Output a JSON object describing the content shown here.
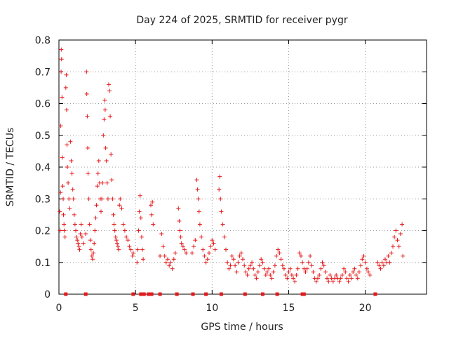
{
  "chart_data": {
    "type": "scatter",
    "title": "Day 224 of 2025, SRMTID for receiver pygr",
    "xlabel": "GPS time / hours",
    "ylabel": "SRMTID / TECUs",
    "xlim": [
      0,
      24
    ],
    "ylim": [
      0,
      0.8
    ],
    "xticks": [
      0,
      5,
      10,
      15,
      20
    ],
    "yticks": [
      0,
      0.1,
      0.2,
      0.3,
      0.4,
      0.5,
      0.6,
      0.7,
      0.8
    ],
    "grid": true,
    "marker": "+",
    "color": "#e41a1c",
    "series": [
      {
        "name": "SRMTID",
        "points": [
          [
            0.05,
            0.26
          ],
          [
            0.08,
            0.2
          ],
          [
            0.1,
            0.32
          ],
          [
            0.12,
            0.53
          ],
          [
            0.14,
            0.7
          ],
          [
            0.15,
            0.77
          ],
          [
            0.17,
            0.74
          ],
          [
            0.2,
            0.62
          ],
          [
            0.22,
            0.43
          ],
          [
            0.25,
            0.34
          ],
          [
            0.28,
            0.3
          ],
          [
            0.3,
            0.25
          ],
          [
            0.33,
            0.22
          ],
          [
            0.35,
            0.2
          ],
          [
            0.4,
            0.18
          ],
          [
            0.45,
            0.65
          ],
          [
            0.48,
            0.69
          ],
          [
            0.5,
            0.58
          ],
          [
            0.52,
            0.47
          ],
          [
            0.55,
            0.4
          ],
          [
            0.6,
            0.35
          ],
          [
            0.65,
            0.3
          ],
          [
            0.7,
            0.27
          ],
          [
            0.75,
            0.48
          ],
          [
            0.8,
            0.42
          ],
          [
            0.85,
            0.38
          ],
          [
            0.9,
            0.33
          ],
          [
            0.95,
            0.3
          ],
          [
            1.0,
            0.25
          ],
          [
            1.05,
            0.22
          ],
          [
            1.1,
            0.2
          ],
          [
            1.15,
            0.18
          ],
          [
            1.2,
            0.17
          ],
          [
            1.25,
            0.16
          ],
          [
            1.3,
            0.15
          ],
          [
            1.35,
            0.14
          ],
          [
            1.4,
            0.19
          ],
          [
            1.45,
            0.22
          ],
          [
            1.5,
            0.18
          ],
          [
            1.6,
            0.16
          ],
          [
            1.75,
            0.19
          ],
          [
            1.8,
            0.7
          ],
          [
            1.82,
            0.63
          ],
          [
            1.85,
            0.56
          ],
          [
            1.88,
            0.46
          ],
          [
            1.9,
            0.38
          ],
          [
            1.95,
            0.3
          ],
          [
            2.0,
            0.22
          ],
          [
            2.05,
            0.17
          ],
          [
            2.1,
            0.14
          ],
          [
            2.15,
            0.12
          ],
          [
            2.2,
            0.11
          ],
          [
            2.25,
            0.13
          ],
          [
            2.3,
            0.16
          ],
          [
            2.35,
            0.2
          ],
          [
            2.4,
            0.24
          ],
          [
            2.45,
            0.28
          ],
          [
            2.5,
            0.34
          ],
          [
            2.55,
            0.38
          ],
          [
            2.6,
            0.42
          ],
          [
            2.65,
            0.35
          ],
          [
            2.7,
            0.3
          ],
          [
            2.75,
            0.26
          ],
          [
            2.8,
            0.3
          ],
          [
            2.85,
            0.35
          ],
          [
            2.9,
            0.5
          ],
          [
            2.95,
            0.55
          ],
          [
            3.0,
            0.61
          ],
          [
            3.02,
            0.58
          ],
          [
            3.05,
            0.46
          ],
          [
            3.1,
            0.42
          ],
          [
            3.15,
            0.35
          ],
          [
            3.2,
            0.3
          ],
          [
            3.25,
            0.66
          ],
          [
            3.3,
            0.64
          ],
          [
            3.35,
            0.56
          ],
          [
            3.4,
            0.44
          ],
          [
            3.45,
            0.36
          ],
          [
            3.5,
            0.3
          ],
          [
            3.55,
            0.25
          ],
          [
            3.6,
            0.22
          ],
          [
            3.65,
            0.2
          ],
          [
            3.7,
            0.18
          ],
          [
            3.75,
            0.17
          ],
          [
            3.8,
            0.16
          ],
          [
            3.85,
            0.15
          ],
          [
            3.9,
            0.14
          ],
          [
            3.95,
            0.28
          ],
          [
            4.0,
            0.3
          ],
          [
            4.1,
            0.27
          ],
          [
            4.2,
            0.22
          ],
          [
            4.3,
            0.2
          ],
          [
            4.4,
            0.18
          ],
          [
            4.5,
            0.17
          ],
          [
            4.6,
            0.15
          ],
          [
            4.7,
            0.14
          ],
          [
            4.8,
            0.12
          ],
          [
            4.85,
            0.13
          ],
          [
            5.1,
            0.1
          ],
          [
            5.15,
            0.14
          ],
          [
            5.2,
            0.2
          ],
          [
            5.25,
            0.26
          ],
          [
            5.3,
            0.31
          ],
          [
            5.35,
            0.24
          ],
          [
            5.4,
            0.18
          ],
          [
            5.45,
            0.14
          ],
          [
            5.5,
            0.11
          ],
          [
            6.0,
            0.28
          ],
          [
            6.05,
            0.25
          ],
          [
            6.1,
            0.29
          ],
          [
            6.15,
            0.22
          ],
          [
            6.6,
            0.12
          ],
          [
            6.7,
            0.19
          ],
          [
            6.8,
            0.15
          ],
          [
            6.9,
            0.12
          ],
          [
            7.0,
            0.1
          ],
          [
            7.1,
            0.11
          ],
          [
            7.2,
            0.09
          ],
          [
            7.3,
            0.1
          ],
          [
            7.4,
            0.08
          ],
          [
            7.5,
            0.11
          ],
          [
            7.6,
            0.13
          ],
          [
            7.8,
            0.27
          ],
          [
            7.85,
            0.23
          ],
          [
            7.9,
            0.2
          ],
          [
            7.95,
            0.18
          ],
          [
            8.0,
            0.16
          ],
          [
            8.1,
            0.15
          ],
          [
            8.2,
            0.14
          ],
          [
            8.3,
            0.13
          ],
          [
            8.7,
            0.13
          ],
          [
            8.8,
            0.15
          ],
          [
            8.9,
            0.17
          ],
          [
            9.0,
            0.36
          ],
          [
            9.05,
            0.33
          ],
          [
            9.1,
            0.3
          ],
          [
            9.15,
            0.26
          ],
          [
            9.2,
            0.22
          ],
          [
            9.3,
            0.18
          ],
          [
            9.4,
            0.14
          ],
          [
            9.5,
            0.12
          ],
          [
            9.6,
            0.1
          ],
          [
            9.7,
            0.11
          ],
          [
            9.8,
            0.13
          ],
          [
            9.9,
            0.15
          ],
          [
            10.0,
            0.17
          ],
          [
            10.1,
            0.16
          ],
          [
            10.2,
            0.14
          ],
          [
            10.45,
            0.33
          ],
          [
            10.5,
            0.37
          ],
          [
            10.55,
            0.3
          ],
          [
            10.6,
            0.26
          ],
          [
            10.7,
            0.22
          ],
          [
            10.8,
            0.18
          ],
          [
            10.9,
            0.14
          ],
          [
            11.0,
            0.1
          ],
          [
            11.1,
            0.08
          ],
          [
            11.2,
            0.09
          ],
          [
            11.3,
            0.12
          ],
          [
            11.4,
            0.11
          ],
          [
            11.5,
            0.09
          ],
          [
            11.6,
            0.07
          ],
          [
            11.7,
            0.1
          ],
          [
            11.8,
            0.12
          ],
          [
            11.9,
            0.13
          ],
          [
            12.0,
            0.11
          ],
          [
            12.1,
            0.09
          ],
          [
            12.2,
            0.07
          ],
          [
            12.3,
            0.06
          ],
          [
            12.4,
            0.08
          ],
          [
            12.5,
            0.09
          ],
          [
            12.6,
            0.1
          ],
          [
            12.7,
            0.08
          ],
          [
            12.8,
            0.06
          ],
          [
            12.9,
            0.05
          ],
          [
            13.0,
            0.07
          ],
          [
            13.1,
            0.09
          ],
          [
            13.2,
            0.11
          ],
          [
            13.3,
            0.1
          ],
          [
            13.4,
            0.08
          ],
          [
            13.5,
            0.06
          ],
          [
            13.6,
            0.07
          ],
          [
            13.7,
            0.08
          ],
          [
            13.8,
            0.06
          ],
          [
            13.9,
            0.05
          ],
          [
            14.0,
            0.07
          ],
          [
            14.1,
            0.09
          ],
          [
            14.2,
            0.12
          ],
          [
            14.3,
            0.14
          ],
          [
            14.4,
            0.13
          ],
          [
            14.5,
            0.11
          ],
          [
            14.6,
            0.09
          ],
          [
            14.7,
            0.08
          ],
          [
            14.8,
            0.06
          ],
          [
            14.9,
            0.05
          ],
          [
            15.0,
            0.07
          ],
          [
            15.1,
            0.08
          ],
          [
            15.2,
            0.06
          ],
          [
            15.3,
            0.05
          ],
          [
            15.4,
            0.04
          ],
          [
            15.5,
            0.06
          ],
          [
            15.6,
            0.08
          ],
          [
            15.7,
            0.13
          ],
          [
            15.8,
            0.12
          ],
          [
            15.9,
            0.1
          ],
          [
            16.0,
            0.08
          ],
          [
            16.1,
            0.07
          ],
          [
            16.2,
            0.08
          ],
          [
            16.3,
            0.1
          ],
          [
            16.4,
            0.12
          ],
          [
            16.5,
            0.09
          ],
          [
            16.6,
            0.07
          ],
          [
            16.7,
            0.05
          ],
          [
            16.8,
            0.04
          ],
          [
            16.9,
            0.05
          ],
          [
            17.0,
            0.06
          ],
          [
            17.1,
            0.08
          ],
          [
            17.2,
            0.1
          ],
          [
            17.3,
            0.09
          ],
          [
            17.4,
            0.07
          ],
          [
            17.5,
            0.05
          ],
          [
            17.6,
            0.04
          ],
          [
            17.7,
            0.06
          ],
          [
            17.8,
            0.05
          ],
          [
            17.9,
            0.04
          ],
          [
            18.0,
            0.05
          ],
          [
            18.1,
            0.06
          ],
          [
            18.2,
            0.05
          ],
          [
            18.3,
            0.04
          ],
          [
            18.4,
            0.05
          ],
          [
            18.5,
            0.06
          ],
          [
            18.6,
            0.08
          ],
          [
            18.7,
            0.07
          ],
          [
            18.8,
            0.05
          ],
          [
            18.9,
            0.04
          ],
          [
            19.0,
            0.06
          ],
          [
            19.1,
            0.05
          ],
          [
            19.2,
            0.07
          ],
          [
            19.3,
            0.08
          ],
          [
            19.4,
            0.06
          ],
          [
            19.5,
            0.05
          ],
          [
            19.6,
            0.07
          ],
          [
            19.7,
            0.09
          ],
          [
            19.8,
            0.11
          ],
          [
            19.9,
            0.12
          ],
          [
            20.0,
            0.1
          ],
          [
            20.1,
            0.08
          ],
          [
            20.2,
            0.07
          ],
          [
            20.3,
            0.06
          ],
          [
            20.8,
            0.1
          ],
          [
            20.9,
            0.09
          ],
          [
            21.0,
            0.08
          ],
          [
            21.1,
            0.1
          ],
          [
            21.2,
            0.09
          ],
          [
            21.3,
            0.11
          ],
          [
            21.4,
            0.1
          ],
          [
            21.5,
            0.12
          ],
          [
            21.6,
            0.1
          ],
          [
            21.7,
            0.13
          ],
          [
            21.8,
            0.15
          ],
          [
            21.9,
            0.18
          ],
          [
            22.0,
            0.2
          ],
          [
            22.1,
            0.17
          ],
          [
            22.2,
            0.15
          ],
          [
            22.3,
            0.19
          ],
          [
            22.4,
            0.22
          ],
          [
            22.45,
            0.12
          ]
        ]
      }
    ],
    "zero_markers_x": [
      0.45,
      1.75,
      4.85,
      5.35,
      5.55,
      5.85,
      6.05,
      6.6,
      7.7,
      8.75,
      9.6,
      10.6,
      12.15,
      13.3,
      14.25,
      15.9,
      16.0,
      20.65
    ]
  }
}
